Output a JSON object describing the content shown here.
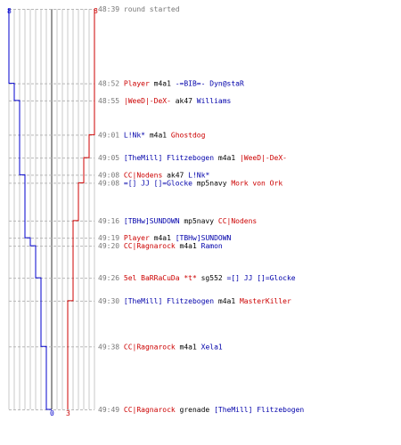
{
  "chart_data": {
    "type": "line",
    "title": "",
    "teams": {
      "blue": {
        "color": "#0000cc",
        "start_count": "8",
        "end_count": "0"
      },
      "red": {
        "color": "#cc0000",
        "start_count": "8",
        "end_count": "3"
      }
    },
    "events": [
      {
        "time": "48:39",
        "note": "round started"
      },
      {
        "time": "48:52",
        "killer": "Player",
        "killer_team": "red",
        "weapon": "m4a1",
        "victim": "-=BIB=- Dyn@staR",
        "victim_team": "blue"
      },
      {
        "time": "48:55",
        "killer": "|WeeD|-DeX-",
        "killer_team": "red",
        "weapon": "ak47",
        "victim": "Williams",
        "victim_team": "blue"
      },
      {
        "time": "49:01",
        "killer": "L!Nk*",
        "killer_team": "blue",
        "weapon": "m4a1",
        "victim": "Ghostdog",
        "victim_team": "red"
      },
      {
        "time": "49:05",
        "killer": "[TheMill] Flitzebogen",
        "killer_team": "blue",
        "weapon": "m4a1",
        "victim": "|WeeD|-DeX-",
        "victim_team": "red"
      },
      {
        "time": "49:08",
        "killer": "CC|Nodens",
        "killer_team": "red",
        "weapon": "ak47",
        "victim": "L!Nk*",
        "victim_team": "blue"
      },
      {
        "time": "49:08",
        "killer": "=[] JJ []=Glocke",
        "killer_team": "blue",
        "weapon": "mp5navy",
        "victim": "Mork von Ork",
        "victim_team": "red"
      },
      {
        "time": "49:16",
        "killer": "[TBHw]SUNDOWN",
        "killer_team": "blue",
        "weapon": "mp5navy",
        "victim": "CC|Nodens",
        "victim_team": "red"
      },
      {
        "time": "49:19",
        "killer": "Player",
        "killer_team": "red",
        "weapon": "m4a1",
        "victim": "[TBHw]SUNDOWN",
        "victim_team": "blue"
      },
      {
        "time": "49:20",
        "killer": "CC|Ragnarock",
        "killer_team": "red",
        "weapon": "m4a1",
        "victim": "Ramon",
        "victim_team": "blue"
      },
      {
        "time": "49:26",
        "killer": "5el BaRRaCuDa *t*",
        "killer_team": "red",
        "weapon": "sg552",
        "victim": "=[] JJ []=Glocke",
        "victim_team": "blue"
      },
      {
        "time": "49:30",
        "killer": "[TheMill] Flitzebogen",
        "killer_team": "blue",
        "weapon": "m4a1",
        "victim": "MasterKiller",
        "victim_team": "red"
      },
      {
        "time": "49:38",
        "killer": "CC|Ragnarock",
        "killer_team": "red",
        "weapon": "m4a1",
        "victim": "Xela1",
        "victim_team": "blue"
      },
      {
        "time": "49:49",
        "killer": "CC|Ragnarock",
        "killer_team": "red",
        "weapon": "grenade",
        "victim": "[TheMill] Flitzebogen",
        "victim_team": "blue"
      }
    ]
  }
}
